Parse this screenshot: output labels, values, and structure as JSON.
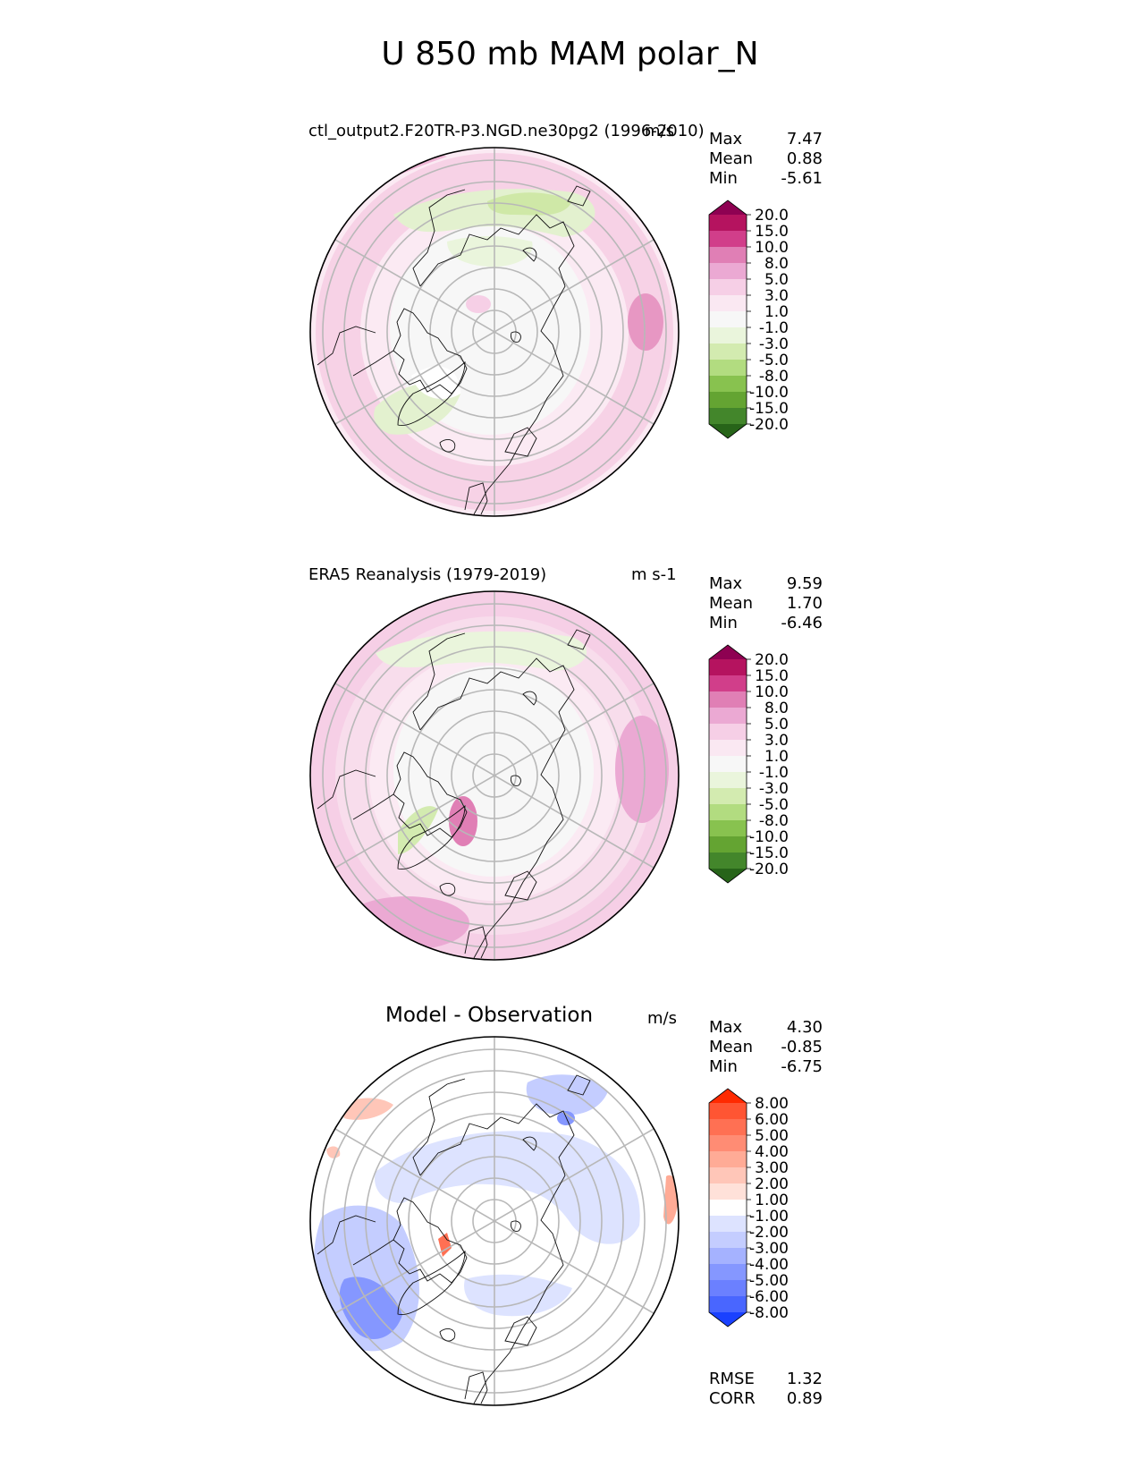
{
  "title": "U 850 mb MAM polar_N",
  "panels": [
    {
      "id": "test",
      "title": "ctl_output2.F20TR-P3.NGD.ne30pg2 (1996-2010)",
      "units": "m/s",
      "stats": [
        {
          "label": "Max",
          "value": "7.47"
        },
        {
          "label": "Mean",
          "value": "0.88"
        },
        {
          "label": "Min",
          "value": "-5.61"
        }
      ]
    },
    {
      "id": "ref",
      "title": "ERA5 Reanalysis (1979-2019)",
      "units": "m s-1",
      "stats": [
        {
          "label": "Max",
          "value": "9.59"
        },
        {
          "label": "Mean",
          "value": "1.70"
        },
        {
          "label": "Min",
          "value": "-6.46"
        }
      ]
    },
    {
      "id": "diff",
      "title": "Model - Observation",
      "units": "m/s",
      "stats": [
        {
          "label": "Max",
          "value": "4.30"
        },
        {
          "label": "Mean",
          "value": "-0.85"
        },
        {
          "label": "Min",
          "value": "-6.75"
        }
      ],
      "extra_stats": [
        {
          "label": "RMSE",
          "value": "1.32"
        },
        {
          "label": "CORR",
          "value": "0.89"
        }
      ]
    }
  ],
  "colorbars": {
    "field": {
      "levels": [
        "20.0",
        "15.0",
        "10.0",
        "8.0",
        "5.0",
        "3.0",
        "1.0",
        "-1.0",
        "-3.0",
        "-5.0",
        "-8.0",
        "-10.0",
        "-15.0",
        "-20.0"
      ],
      "colors": [
        "#8e0152",
        "#b5135f",
        "#d13e8a",
        "#e07fb5",
        "#eba9d3",
        "#f6cfe6",
        "#fae8f2",
        "#f7f7f7",
        "#eaf5dc",
        "#d3ebb0",
        "#b2dc80",
        "#88c24f",
        "#64a432",
        "#43862b",
        "#276419"
      ]
    },
    "diff": {
      "levels": [
        "8.00",
        "6.00",
        "5.00",
        "4.00",
        "3.00",
        "2.00",
        "1.00",
        "-1.00",
        "-2.00",
        "-3.00",
        "-4.00",
        "-5.00",
        "-6.00",
        "-8.00"
      ],
      "colors": [
        "#ff2a00",
        "#ff5533",
        "#ff7053",
        "#ff8c74",
        "#ffab96",
        "#ffc6b8",
        "#ffe1d9",
        "#ffffff",
        "#dde3ff",
        "#c4cdff",
        "#a5b2ff",
        "#8597ff",
        "#6b80ff",
        "#4966ff",
        "#1a41ff"
      ]
    }
  },
  "chart_data": [
    {
      "type": "heatmap",
      "projection": "north-polar-stereographic",
      "title": "ctl_output2.F20TR-P3.NGD.ne30pg2 (1996-2010)",
      "units": "m/s",
      "stats": {
        "max": 7.47,
        "mean": 0.88,
        "min": -5.61
      },
      "contour_levels": [
        -20,
        -15,
        -10,
        -8,
        -5,
        -3,
        -1,
        1,
        3,
        5,
        8,
        10,
        15,
        20
      ]
    },
    {
      "type": "heatmap",
      "projection": "north-polar-stereographic",
      "title": "ERA5 Reanalysis (1979-2019)",
      "units": "m s-1",
      "stats": {
        "max": 9.59,
        "mean": 1.7,
        "min": -6.46
      },
      "contour_levels": [
        -20,
        -15,
        -10,
        -8,
        -5,
        -3,
        -1,
        1,
        3,
        5,
        8,
        10,
        15,
        20
      ]
    },
    {
      "type": "heatmap",
      "projection": "north-polar-stereographic",
      "title": "Model - Observation",
      "units": "m/s",
      "stats": {
        "max": 4.3,
        "mean": -0.85,
        "min": -6.75,
        "rmse": 1.32,
        "corr": 0.89
      },
      "contour_levels": [
        -8,
        -6,
        -5,
        -4,
        -3,
        -2,
        -1,
        1,
        2,
        3,
        4,
        5,
        6,
        8
      ]
    }
  ]
}
